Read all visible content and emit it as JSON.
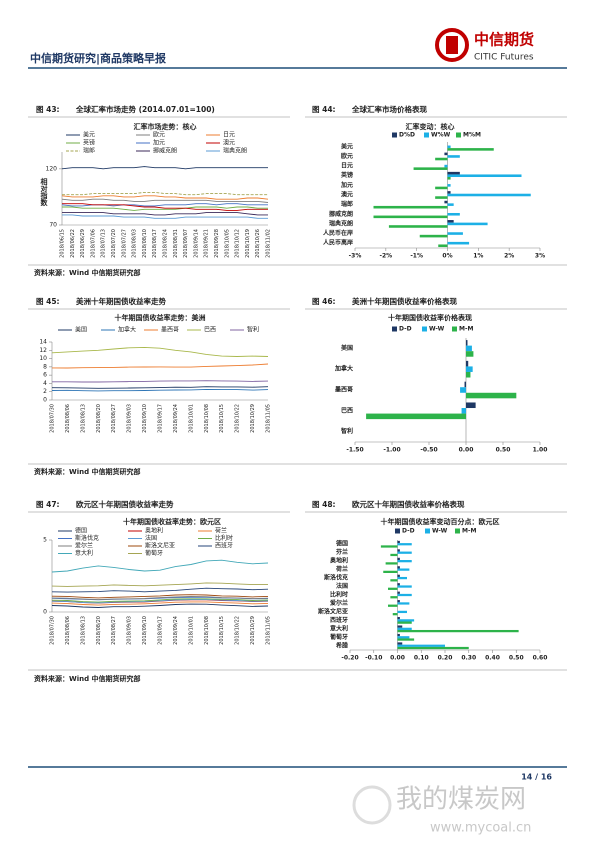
{
  "header": {
    "title": "中信期货研究|商品策略早报",
    "logo_cn": "中信期货",
    "logo_en": "CITIC Futures"
  },
  "chart_data": [
    {
      "type": "line",
      "figure_label": "图 43:",
      "figure_title": "全球汇率市场走势 (2014.07.01=100)",
      "title": "汇率市场走势：核心",
      "y_label": "相对指数",
      "categories": [
        "2018/06/15",
        "2018/06/22",
        "2018/06/29",
        "2018/07/06",
        "2018/07/13",
        "2018/07/20",
        "2018/07/27",
        "2018/08/03",
        "2018/08/10",
        "2018/08/17",
        "2018/08/24",
        "2018/08/31",
        "2018/09/07",
        "2018/09/14",
        "2018/09/21",
        "2018/09/28",
        "2018/10/05",
        "2018/10/12",
        "2018/10/19",
        "2018/10/26",
        "2018/11/02"
      ],
      "ylim": [
        70,
        135
      ],
      "yticks": [
        70,
        120
      ],
      "series": [
        {
          "name": "美元",
          "color": "#1f3864",
          "values": [
            120,
            121,
            121,
            121,
            120,
            121,
            121,
            121,
            122,
            121,
            121,
            121,
            120,
            121,
            121,
            121,
            121,
            121,
            121,
            121,
            121
          ]
        },
        {
          "name": "欧元",
          "color": "#7f7f7f",
          "values": [
            93,
            92,
            92,
            93,
            93,
            92,
            92,
            91,
            91,
            92,
            92,
            92,
            92,
            92,
            92,
            91,
            91,
            91,
            91,
            91,
            90
          ]
        },
        {
          "name": "日元",
          "color": "#ed7d31",
          "values": [
            96,
            95,
            95,
            95,
            96,
            96,
            95,
            95,
            96,
            96,
            95,
            95,
            94,
            94,
            94,
            93,
            93,
            93,
            94,
            94,
            93
          ]
        },
        {
          "name": "英镑",
          "color": "#70ad47",
          "values": [
            86,
            86,
            85,
            85,
            85,
            85,
            84,
            83,
            84,
            84,
            84,
            84,
            85,
            86,
            86,
            86,
            85,
            86,
            86,
            85,
            85
          ]
        },
        {
          "name": "加元",
          "color": "#4472c4",
          "values": [
            88,
            87,
            87,
            88,
            88,
            87,
            88,
            88,
            87,
            87,
            88,
            88,
            88,
            89,
            89,
            88,
            89,
            89,
            88,
            88,
            88
          ]
        },
        {
          "name": "澳元",
          "color": "#c00000",
          "values": [
            89,
            89,
            89,
            88,
            88,
            88,
            88,
            87,
            86,
            86,
            85,
            85,
            85,
            84,
            84,
            84,
            83,
            83,
            84,
            84,
            84
          ]
        },
        {
          "name": "瑞郎",
          "color": "#a5a552",
          "dashed": true,
          "values": [
            97,
            97,
            97,
            98,
            98,
            98,
            98,
            98,
            99,
            99,
            98,
            98,
            97,
            97,
            98,
            98,
            98,
            97,
            97,
            97,
            97
          ]
        },
        {
          "name": "挪威克朗",
          "color": "#3b2a5a",
          "values": [
            81,
            81,
            81,
            81,
            81,
            80,
            80,
            80,
            80,
            79,
            79,
            80,
            80,
            80,
            81,
            81,
            81,
            81,
            80,
            79,
            79
          ]
        },
        {
          "name": "瑞典克朗",
          "color": "#5b9bd5",
          "values": [
            79,
            79,
            78,
            78,
            78,
            78,
            77,
            77,
            77,
            76,
            76,
            76,
            77,
            77,
            77,
            77,
            77,
            77,
            77,
            76,
            76
          ]
        }
      ]
    },
    {
      "type": "barh",
      "figure_label": "图 44:",
      "figure_title": "全球汇率市场价格表现",
      "title": "汇率变动：核心",
      "categories": [
        "美元",
        "欧元",
        "日元",
        "英镑",
        "加元",
        "澳元",
        "瑞郎",
        "挪威克朗",
        "瑞典克朗",
        "人民币在岸",
        "人民币离岸"
      ],
      "xlim": [
        -3,
        3
      ],
      "xticks": [
        {
          "value": -3,
          "label": "-3%"
        },
        {
          "value": -2,
          "label": "-2%"
        },
        {
          "value": -1,
          "label": "-1%"
        },
        {
          "value": 0,
          "label": "0%"
        },
        {
          "value": 1,
          "label": "1%"
        },
        {
          "value": 2,
          "label": "2%"
        },
        {
          "value": 3,
          "label": "3%"
        }
      ],
      "series": [
        {
          "name": "D%D",
          "color": "#1f3864",
          "values": [
            0.0,
            -0.1,
            0.0,
            0.4,
            0.0,
            0.1,
            -0.1,
            0.0,
            0.2,
            0.0,
            0.0
          ]
        },
        {
          "name": "W%W",
          "color": "#1cb0e6",
          "values": [
            0.1,
            0.4,
            -0.1,
            2.4,
            0.1,
            2.7,
            0.2,
            0.4,
            1.3,
            0.5,
            0.7
          ]
        },
        {
          "name": "M%M",
          "color": "#2db34a",
          "values": [
            1.5,
            -0.4,
            -1.1,
            0.1,
            -0.4,
            -0.4,
            -2.4,
            -2.4,
            -1.9,
            -0.9,
            -0.3
          ]
        }
      ]
    },
    {
      "type": "line",
      "figure_label": "图 45:",
      "figure_title": "美洲十年期国债收益率走势",
      "title": "十年期国债收益率走势：美洲",
      "categories": [
        "2018/07/30",
        "2018/08/06",
        "2018/08/13",
        "2018/08/20",
        "2018/08/27",
        "2018/09/03",
        "2018/09/10",
        "2018/09/17",
        "2018/09/24",
        "2018/10/01",
        "2018/10/08",
        "2018/10/15",
        "2018/10/22",
        "2018/10/29",
        "2018/11/05"
      ],
      "ylim": [
        0,
        14
      ],
      "yticks": [
        0,
        2,
        4,
        6,
        8,
        10,
        12,
        14
      ],
      "series": [
        {
          "name": "美国",
          "color": "#1f3864",
          "values": [
            2.96,
            2.95,
            2.87,
            2.82,
            2.86,
            2.9,
            2.94,
            3.0,
            3.08,
            3.06,
            3.22,
            3.16,
            3.17,
            3.08,
            3.21
          ]
        },
        {
          "name": "加拿大",
          "color": "#2e75b6",
          "values": [
            2.3,
            2.33,
            2.25,
            2.2,
            2.24,
            2.25,
            2.3,
            2.37,
            2.42,
            2.43,
            2.55,
            2.5,
            2.5,
            2.4,
            2.5
          ]
        },
        {
          "name": "墨西哥",
          "color": "#ed7d31",
          "values": [
            7.75,
            7.72,
            7.8,
            7.82,
            7.88,
            7.95,
            7.97,
            7.98,
            7.95,
            7.95,
            8.1,
            8.2,
            8.3,
            8.45,
            8.7
          ]
        },
        {
          "name": "巴西",
          "color": "#a9b84c",
          "values": [
            11.4,
            11.6,
            11.8,
            12.0,
            12.3,
            12.6,
            12.7,
            12.5,
            12.0,
            11.6,
            11.0,
            10.6,
            10.5,
            10.6,
            10.5
          ]
        },
        {
          "name": "智利",
          "color": "#8064a2",
          "values": [
            4.4,
            4.4,
            4.35,
            4.35,
            4.4,
            4.45,
            4.5,
            4.55,
            4.6,
            4.6,
            4.65,
            4.6,
            4.55,
            4.5,
            4.55
          ]
        }
      ]
    },
    {
      "type": "barh",
      "figure_label": "图 46:",
      "figure_title": "美洲十年期国债收益率价格表现",
      "title": "十年期国债收益率价格表现",
      "categories": [
        "美国",
        "加拿大",
        "墨西哥",
        "巴西",
        "智利"
      ],
      "xlim": [
        -1.5,
        1
      ],
      "xticks": [
        {
          "value": -1.5,
          "label": "-1.50"
        },
        {
          "value": -1,
          "label": "-1.00"
        },
        {
          "value": -0.5,
          "label": "-0.50"
        },
        {
          "value": 0,
          "label": "0.00"
        },
        {
          "value": 0.5,
          "label": "0.50"
        },
        {
          "value": 1,
          "label": "1.00"
        }
      ],
      "series": [
        {
          "name": "D-D",
          "color": "#1f3864",
          "values": [
            0.02,
            0.03,
            -0.02,
            0.13,
            0
          ]
        },
        {
          "name": "W-W",
          "color": "#1cb0e6",
          "values": [
            0.08,
            0.09,
            -0.08,
            -0.06,
            0
          ]
        },
        {
          "name": "M-M",
          "color": "#2db34a",
          "values": [
            0.1,
            0.06,
            0.68,
            -1.35,
            0
          ]
        }
      ]
    },
    {
      "type": "line",
      "figure_label": "图 47:",
      "figure_title": "欧元区十年期国债收益率走势",
      "title": "十年期国债收益率走势：欧元区",
      "categories": [
        "2018/07/30",
        "2018/08/06",
        "2018/08/13",
        "2018/08/20",
        "2018/08/27",
        "2018/09/03",
        "2018/09/10",
        "2018/09/17",
        "2018/09/24",
        "2018/10/01",
        "2018/10/08",
        "2018/10/15",
        "2018/10/22",
        "2018/10/29",
        "2018/11/05"
      ],
      "ylim": [
        0,
        5
      ],
      "yticks": [
        0,
        5
      ],
      "series": [
        {
          "name": "德国",
          "color": "#1f3864",
          "values": [
            0.45,
            0.42,
            0.35,
            0.31,
            0.37,
            0.37,
            0.4,
            0.45,
            0.52,
            0.55,
            0.54,
            0.48,
            0.44,
            0.39,
            0.42
          ]
        },
        {
          "name": "奥地利",
          "color": "#c00000",
          "values": [
            0.75,
            0.72,
            0.65,
            0.62,
            0.67,
            0.68,
            0.7,
            0.76,
            0.82,
            0.85,
            0.85,
            0.8,
            0.78,
            0.72,
            0.75
          ]
        },
        {
          "name": "荷兰",
          "color": "#ed7d31",
          "values": [
            0.62,
            0.58,
            0.52,
            0.48,
            0.53,
            0.54,
            0.57,
            0.62,
            0.68,
            0.7,
            0.7,
            0.65,
            0.62,
            0.57,
            0.6
          ]
        },
        {
          "name": "斯洛伐克",
          "color": "#4472c4",
          "values": [
            0.95,
            0.92,
            0.88,
            0.85,
            0.88,
            0.9,
            0.92,
            0.96,
            1.0,
            1.02,
            1.02,
            0.98,
            0.96,
            0.92,
            0.94
          ]
        },
        {
          "name": "法国",
          "color": "#5b9bd5",
          "values": [
            0.75,
            0.72,
            0.66,
            0.63,
            0.68,
            0.7,
            0.72,
            0.78,
            0.84,
            0.87,
            0.86,
            0.82,
            0.8,
            0.74,
            0.77
          ]
        },
        {
          "name": "比利时",
          "color": "#70ad47",
          "values": [
            0.82,
            0.8,
            0.72,
            0.69,
            0.74,
            0.76,
            0.78,
            0.84,
            0.9,
            0.92,
            0.92,
            0.88,
            0.86,
            0.8,
            0.83
          ]
        },
        {
          "name": "爱尔兰",
          "color": "#7f7f7f",
          "values": [
            0.98,
            0.96,
            0.9,
            0.86,
            0.9,
            0.92,
            0.94,
            1.0,
            1.05,
            1.08,
            1.06,
            1.0,
            0.98,
            0.93,
            0.96
          ]
        },
        {
          "name": "斯洛文尼亚",
          "color": "#9e480e",
          "values": [
            1.1,
            1.08,
            1.02,
            0.98,
            1.02,
            1.05,
            1.08,
            1.12,
            1.18,
            1.2,
            1.18,
            1.12,
            1.1,
            1.05,
            1.08
          ]
        },
        {
          "name": "西班牙",
          "color": "#264478",
          "values": [
            1.4,
            1.38,
            1.4,
            1.42,
            1.48,
            1.45,
            1.4,
            1.45,
            1.5,
            1.58,
            1.65,
            1.62,
            1.6,
            1.55,
            1.58
          ]
        },
        {
          "name": "意大利",
          "color": "#43a8b8",
          "values": [
            2.78,
            2.85,
            3.05,
            3.2,
            3.1,
            2.95,
            2.85,
            2.9,
            3.15,
            3.3,
            3.55,
            3.6,
            3.45,
            3.35,
            3.4
          ]
        },
        {
          "name": "葡萄牙",
          "color": "#a5a552",
          "values": [
            1.8,
            1.78,
            1.8,
            1.82,
            1.88,
            1.85,
            1.82,
            1.86,
            1.9,
            1.95,
            2.02,
            2.0,
            1.95,
            1.9,
            1.92
          ]
        }
      ]
    },
    {
      "type": "barh",
      "figure_label": "图 48:",
      "figure_title": "欧元区十年期国债收益率价格表现",
      "title": "十年期国债收益率变动百分点：欧元区",
      "categories": [
        "德国",
        "芬兰",
        "奥地利",
        "荷兰",
        "斯洛伐克",
        "法国",
        "比利时",
        "爱尔兰",
        "斯洛文尼亚",
        "西班牙",
        "意大利",
        "葡萄牙",
        "希腊"
      ],
      "xlim": [
        -0.2,
        0.6
      ],
      "xticks": [
        {
          "value": -0.2,
          "label": "-0.20"
        },
        {
          "value": -0.1,
          "label": "-0.10"
        },
        {
          "value": 0,
          "label": "0.00"
        },
        {
          "value": 0.1,
          "label": "0.10"
        },
        {
          "value": 0.2,
          "label": "0.20"
        },
        {
          "value": 0.3,
          "label": "0.30"
        },
        {
          "value": 0.4,
          "label": "0.40"
        },
        {
          "value": 0.5,
          "label": "0.50"
        },
        {
          "value": 0.6,
          "label": "0.60"
        }
      ],
      "series": [
        {
          "name": "D-D",
          "color": "#1f3864",
          "values": [
            0.01,
            0.01,
            0.01,
            0.01,
            0.01,
            0.01,
            0.01,
            0.01,
            0.0,
            0.01,
            0.02,
            0.01,
            0.02
          ]
        },
        {
          "name": "W-W",
          "color": "#1cb0e6",
          "values": [
            0.06,
            0.06,
            0.06,
            0.05,
            0.04,
            0.06,
            0.06,
            0.05,
            0.04,
            0.07,
            0.06,
            0.05,
            0.2
          ]
        },
        {
          "name": "M-M",
          "color": "#2db34a",
          "values": [
            -0.07,
            -0.03,
            -0.05,
            -0.06,
            -0.03,
            -0.04,
            -0.03,
            -0.04,
            -0.02,
            0.06,
            0.51,
            0.07,
            0.3
          ]
        }
      ]
    }
  ],
  "sources": [
    "资料来源：Wind  中信期货研究部",
    "资料来源：Wind  中信期货研究部",
    "资料来源：Wind  中信期货研究部"
  ],
  "footer": {
    "page": "14 / 16"
  },
  "watermark": {
    "cn": "我的煤炭网",
    "url": "www.mycoal.cn"
  }
}
